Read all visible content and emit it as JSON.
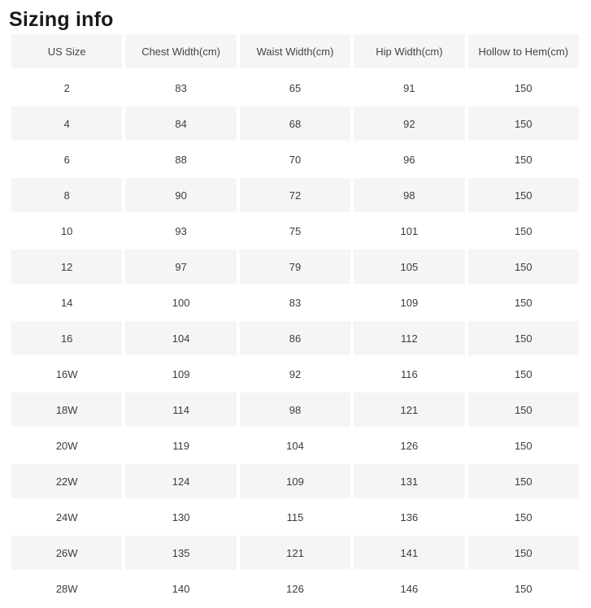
{
  "page": {
    "title": "Sizing info"
  },
  "sizing_table": {
    "columns": [
      "US Size",
      "Chest Width(cm)",
      "Waist Width(cm)",
      "Hip Width(cm)",
      "Hollow to Hem(cm)"
    ],
    "rows": [
      [
        "2",
        "83",
        "65",
        "91",
        "150"
      ],
      [
        "4",
        "84",
        "68",
        "92",
        "150"
      ],
      [
        "6",
        "88",
        "70",
        "96",
        "150"
      ],
      [
        "8",
        "90",
        "72",
        "98",
        "150"
      ],
      [
        "10",
        "93",
        "75",
        "101",
        "150"
      ],
      [
        "12",
        "97",
        "79",
        "105",
        "150"
      ],
      [
        "14",
        "100",
        "83",
        "109",
        "150"
      ],
      [
        "16",
        "104",
        "86",
        "112",
        "150"
      ],
      [
        "16W",
        "109",
        "92",
        "116",
        "150"
      ],
      [
        "18W",
        "114",
        "98",
        "121",
        "150"
      ],
      [
        "20W",
        "119",
        "104",
        "126",
        "150"
      ],
      [
        "22W",
        "124",
        "109",
        "131",
        "150"
      ],
      [
        "24W",
        "130",
        "115",
        "136",
        "150"
      ],
      [
        "26W",
        "135",
        "121",
        "141",
        "150"
      ],
      [
        "28W",
        "140",
        "126",
        "146",
        "150"
      ]
    ]
  },
  "colors": {
    "background": "#ffffff",
    "row_stripe": "#f5f5f5",
    "cell_text": "#3c3c3c",
    "header_text": "#444444",
    "title_text": "#1a1a1a"
  }
}
